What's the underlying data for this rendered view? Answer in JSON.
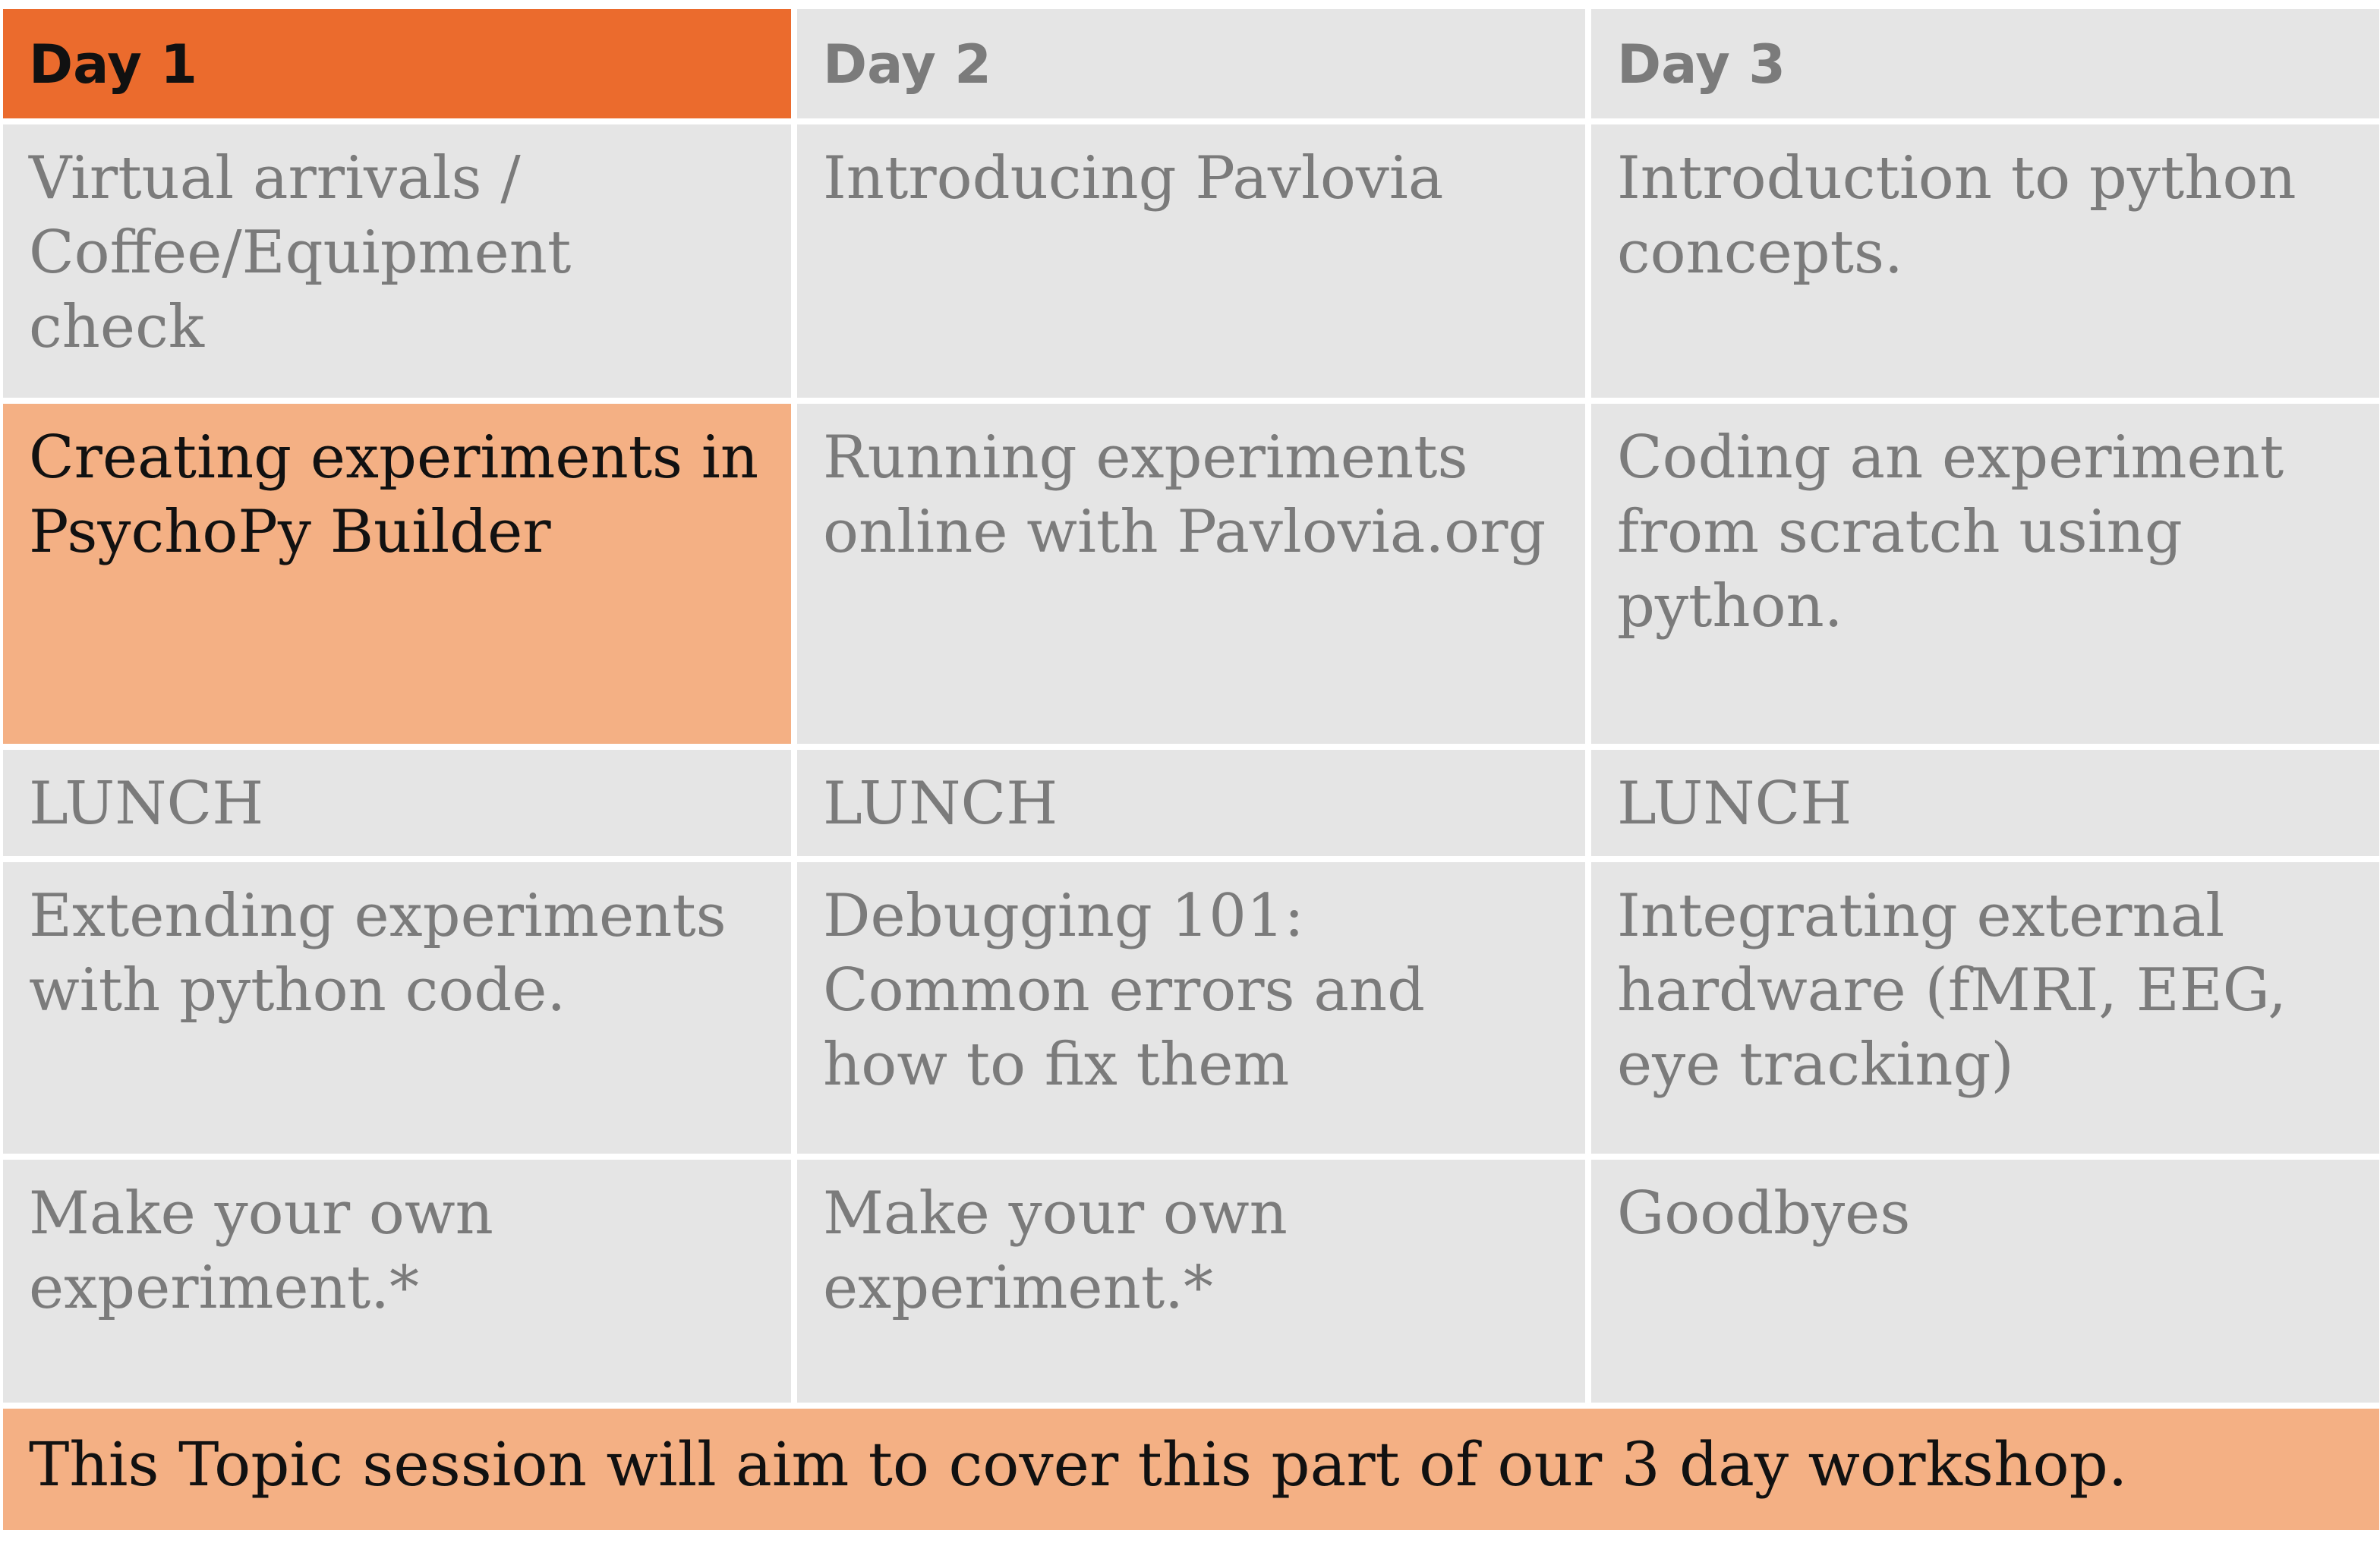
{
  "headers": [
    "Day 1",
    "Day 2",
    "Day 3"
  ],
  "rows": [
    [
      "Virtual arrivals / Coffee/Equipment check",
      "Introducing Pavlovia",
      "Introduction to python concepts."
    ],
    [
      "Creating experiments in PsychoPy Builder",
      "Running experiments online with Pavlovia.org",
      "Coding an experiment from scratch using python."
    ],
    [
      "LUNCH",
      "LUNCH",
      "LUNCH"
    ],
    [
      "Extending experiments with python code.",
      "Debugging 101: Common errors and how to fix them",
      "Integrating external hardware (fMRI, EEG, eye tracking)"
    ],
    [
      "Make your own experiment.*",
      "Make your own experiment.*",
      "Goodbyes"
    ]
  ],
  "footer": "This Topic session will aim to cover this part of our 3 day workshop.",
  "colors": {
    "header_active": "#eb6b2d",
    "highlight": "#f4b084",
    "cell_bg": "#e5e5e5",
    "muted_text": "#7b7b7b"
  }
}
